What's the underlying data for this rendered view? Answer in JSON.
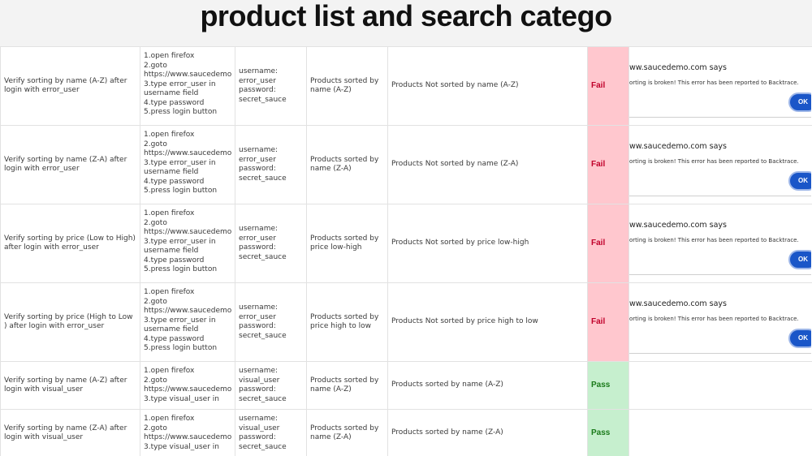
{
  "title": "product list and search  catego",
  "dialog": {
    "site": "ww.saucedemo.com says",
    "message": "orting is broken! This error has been reported to Backtrace.",
    "ok_label": "OK"
  },
  "rows": [
    {
      "scenario": "Verify sorting by name (A-Z) after login with error_user",
      "steps": "1.open firefox\n 2.goto https://www.saucedemo.com/\n 3.type error_user in username field\n 4.type password\n 5.press login button",
      "data": "username:\nerror_user\n  password:\nsecret_sauce",
      "expected": "Products sorted by name (A-Z)",
      "actual": "Products Not sorted by name (A-Z)",
      "status": "Fail"
    },
    {
      "scenario": "Verify sorting by name (Z-A) after login with error_user",
      "steps": "1.open firefox\n 2.goto https://www.saucedemo.com/\n 3.type error_user in username field\n 4.type password\n 5.press login button",
      "data": "username:\nerror_user\n  password:\nsecret_sauce",
      "expected": "Products sorted by name (Z-A)",
      "actual": "Products Not sorted by name (Z-A)",
      "status": "Fail"
    },
    {
      "scenario": "Verify sorting by price (Low to High) after login with error_user",
      "steps": "1.open firefox\n 2.goto https://www.saucedemo.com/\n 3.type error_user in username field\n 4.type password\n 5.press login button",
      "data": "username:\nerror_user\n  password:\nsecret_sauce",
      "expected": "Products sorted by price low-high",
      "actual": "Products Not sorted by price low-high",
      "status": "Fail"
    },
    {
      "scenario": "Verify sorting by price (High to Low ) after login with error_user",
      "steps": "1.open firefox\n 2.goto https://www.saucedemo.com/\n 3.type error_user in username field\n 4.type password\n 5.press login button",
      "data": "username:\nerror_user\n  password:\nsecret_sauce",
      "expected": "Products sorted by price high to low",
      "actual": "Products Not sorted by price high to low",
      "status": "Fail"
    },
    {
      "scenario": "Verify sorting by name (A-Z) after login with visual_user",
      "steps": "1.open firefox\n 2.goto https://www.saucedemo.com/\n 3.type visual_user in",
      "data": "username:\nvisual_user\n  password:\nsecret_sauce",
      "expected": "Products sorted by name (A-Z)",
      "actual": "Products sorted by name (A-Z)",
      "status": "Pass"
    },
    {
      "scenario": "Verify sorting by name (Z-A) after login with visual_user",
      "steps": "1.open firefox\n 2.goto https://www.saucedemo.com/\n 3.type visual_user in",
      "data": "username:\nvisual_user\n  password:\nsecret_sauce",
      "expected": "Products sorted by name (Z-A)",
      "actual": "Products sorted by name (Z-A)",
      "status": "Pass"
    }
  ]
}
